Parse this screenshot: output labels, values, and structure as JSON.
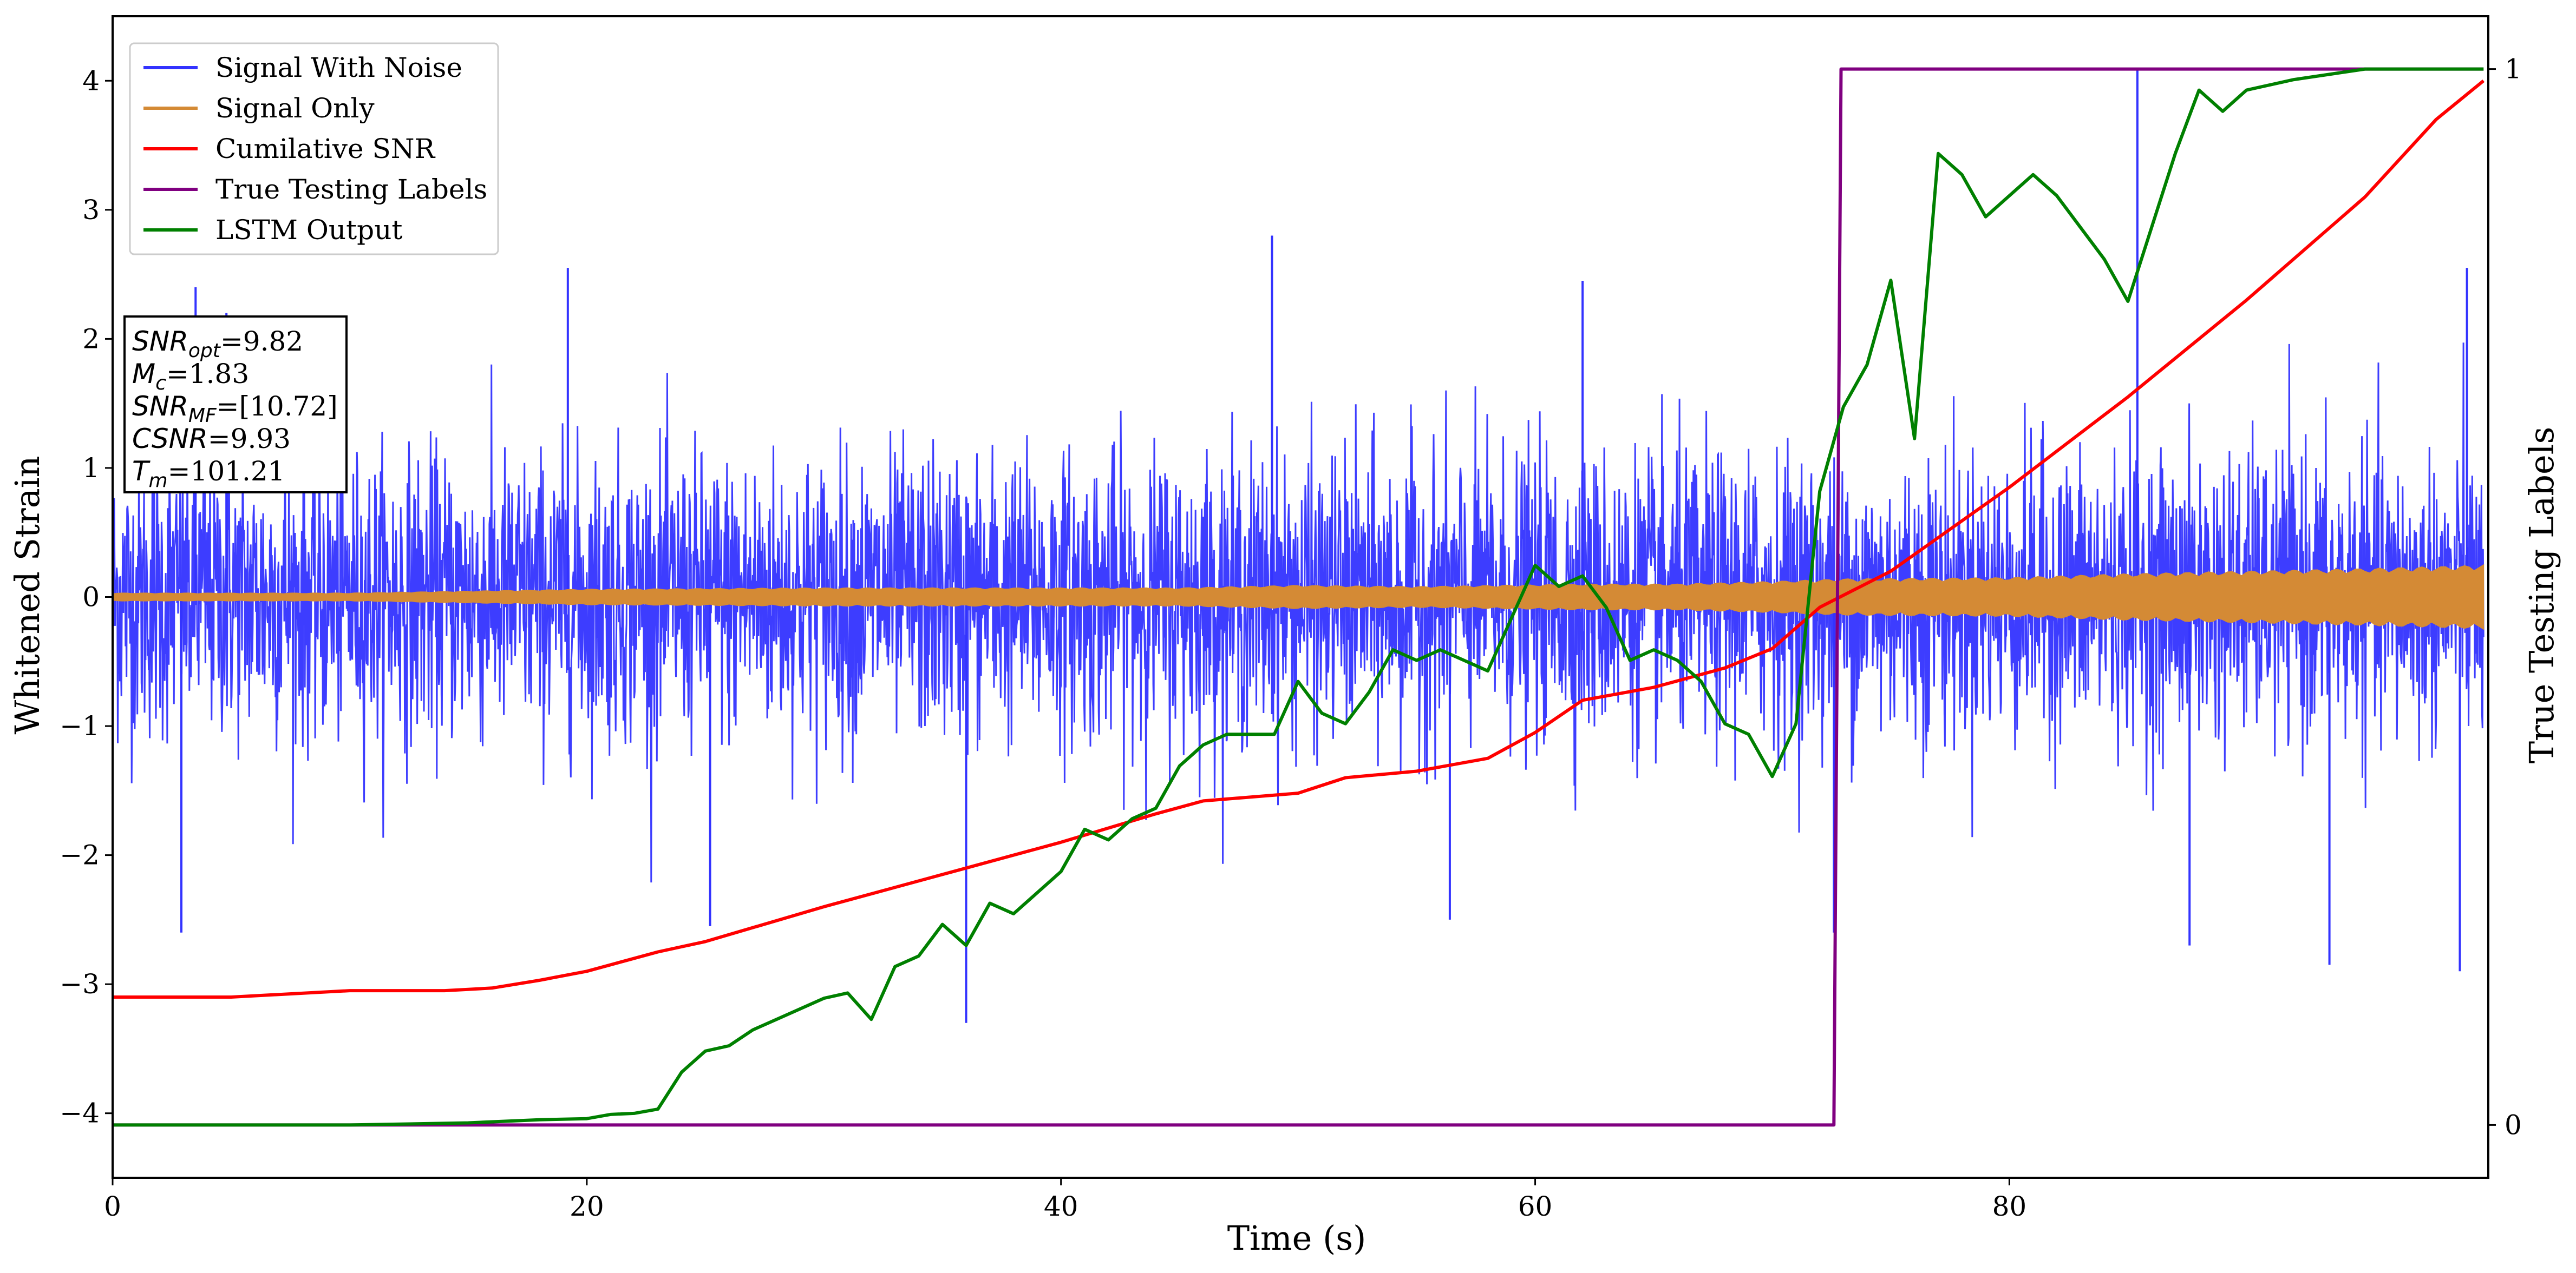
{
  "chart_data": {
    "type": "line",
    "xlabel": "Time (s)",
    "ylabel": "Whitened Strain",
    "y2label": "True Testing Labels",
    "xlim": [
      0,
      100.2
    ],
    "ylim": [
      -4.5,
      4.5
    ],
    "y2lim": [
      -0.05,
      1.05
    ],
    "xticks": [
      0,
      20,
      40,
      60,
      80
    ],
    "yticks": [
      -4,
      -3,
      -2,
      -1,
      0,
      1,
      2,
      3,
      4
    ],
    "y2ticks": [
      0,
      1
    ],
    "legend_position": "top-left",
    "colors": {
      "noise": "#3333ff",
      "signal": "#d48a35",
      "csnr": "#ff0000",
      "labels": "#800080",
      "lstm": "#008000"
    },
    "annotation": {
      "lines": [
        {
          "main": "SNR",
          "sub": "opt",
          "value": "=9.82"
        },
        {
          "main": "M",
          "sub": "c",
          "value": "=1.83"
        },
        {
          "main": "SNR",
          "sub": "MF",
          "value": "=[10.72]"
        },
        {
          "main": "CSNR",
          "sub": "",
          "value": "=9.93"
        },
        {
          "main": "T",
          "sub": "m",
          "value": "=101.21"
        }
      ]
    },
    "series": [
      {
        "name": "Signal With Noise",
        "kind": "noise",
        "noise_std": 0.55,
        "spikes": [
          {
            "x": 3.5,
            "y": 2.4
          },
          {
            "x": 4.8,
            "y": 2.2
          },
          {
            "x": 2.9,
            "y": -2.6
          },
          {
            "x": 19.2,
            "y": 2.55
          },
          {
            "x": 48.9,
            "y": 2.8
          },
          {
            "x": 36.0,
            "y": -3.3
          },
          {
            "x": 85.4,
            "y": 4.1
          },
          {
            "x": 87.6,
            "y": -2.7
          },
          {
            "x": 93.5,
            "y": -2.85
          },
          {
            "x": 99.0,
            "y": -2.9
          },
          {
            "x": 99.3,
            "y": 2.55
          },
          {
            "x": 62.0,
            "y": 2.45
          },
          {
            "x": 25.2,
            "y": -2.55
          },
          {
            "x": 72.6,
            "y": -2.6
          },
          {
            "x": 56.4,
            "y": -2.5
          }
        ]
      },
      {
        "name": "Signal Only",
        "kind": "signal",
        "envelope": [
          [
            0,
            0.03
          ],
          [
            10,
            0.03
          ],
          [
            20,
            0.06
          ],
          [
            30,
            0.07
          ],
          [
            40,
            0.07
          ],
          [
            45,
            0.07
          ],
          [
            50,
            0.09
          ],
          [
            55,
            0.08
          ],
          [
            62,
            0.1
          ],
          [
            66,
            0.1
          ],
          [
            70,
            0.12
          ],
          [
            73,
            0.14
          ],
          [
            80,
            0.15
          ],
          [
            85,
            0.18
          ],
          [
            90,
            0.2
          ],
          [
            95,
            0.22
          ],
          [
            99,
            0.24
          ],
          [
            100,
            0.25
          ]
        ]
      },
      {
        "name": "Cumilative SNR",
        "kind": "line",
        "axis": "left",
        "x": [
          0,
          5,
          10,
          14,
          16,
          18,
          20,
          23,
          25,
          30,
          35,
          40,
          44,
          46,
          50,
          52,
          55,
          58,
          60,
          62,
          65,
          68,
          70,
          72,
          75,
          80,
          85,
          90,
          95,
          98,
          100
        ],
        "y": [
          -3.1,
          -3.1,
          -3.05,
          -3.05,
          -3.03,
          -2.97,
          -2.9,
          -2.75,
          -2.67,
          -2.4,
          -2.15,
          -1.9,
          -1.68,
          -1.58,
          -1.52,
          -1.4,
          -1.35,
          -1.25,
          -1.05,
          -0.8,
          -0.7,
          -0.55,
          -0.4,
          -0.08,
          0.2,
          0.85,
          1.55,
          2.3,
          3.1,
          3.7,
          4.0
        ]
      },
      {
        "name": "True Testing Labels",
        "kind": "step",
        "axis": "right",
        "x": [
          0,
          72.6,
          72.9,
          100
        ],
        "y": [
          0,
          0,
          1,
          1
        ]
      },
      {
        "name": "LSTM Output",
        "kind": "line",
        "axis": "right",
        "x": [
          0,
          10,
          15,
          18,
          20,
          21,
          22,
          23,
          24,
          25,
          26,
          27,
          28,
          29,
          30,
          31,
          32,
          33,
          34,
          35,
          36,
          37,
          38,
          39,
          40,
          41,
          42,
          43,
          44,
          45,
          46,
          47,
          48,
          49,
          50,
          51,
          52,
          53,
          54,
          55,
          56,
          57,
          58,
          59,
          60,
          61,
          62,
          63,
          64,
          65,
          66,
          67,
          68,
          69,
          70,
          71,
          72,
          73,
          74,
          75,
          76,
          77,
          78,
          79,
          80,
          81,
          82,
          83,
          84,
          85,
          86,
          87,
          88,
          89,
          90,
          92,
          95,
          100
        ],
        "y": [
          0,
          0,
          0.002,
          0.005,
          0.006,
          0.01,
          0.011,
          0.015,
          0.05,
          0.07,
          0.075,
          0.09,
          0.1,
          0.11,
          0.12,
          0.125,
          0.1,
          0.15,
          0.16,
          0.19,
          0.17,
          0.21,
          0.2,
          0.22,
          0.24,
          0.28,
          0.27,
          0.29,
          0.3,
          0.34,
          0.36,
          0.37,
          0.37,
          0.37,
          0.42,
          0.39,
          0.38,
          0.41,
          0.45,
          0.44,
          0.45,
          0.44,
          0.43,
          0.48,
          0.53,
          0.51,
          0.52,
          0.49,
          0.44,
          0.45,
          0.44,
          0.42,
          0.38,
          0.37,
          0.33,
          0.38,
          0.6,
          0.68,
          0.72,
          0.8,
          0.65,
          0.92,
          0.9,
          0.86,
          0.88,
          0.9,
          0.88,
          0.85,
          0.82,
          0.78,
          0.85,
          0.92,
          0.98,
          0.96,
          0.98,
          0.99,
          1.0,
          1.0
        ]
      }
    ]
  }
}
